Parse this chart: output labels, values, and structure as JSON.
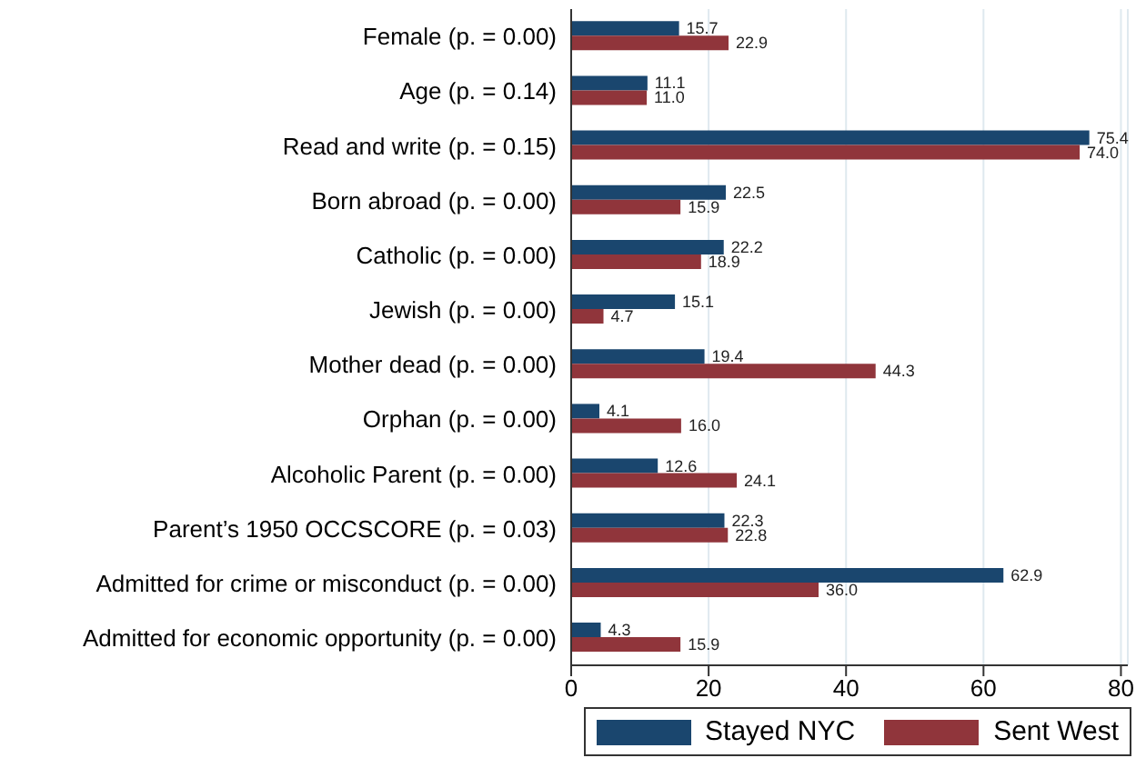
{
  "chart_data": {
    "type": "bar",
    "orientation": "horizontal",
    "categories": [
      "Female (p. = 0.00)",
      "Age (p. = 0.14)",
      "Read and write (p. = 0.15)",
      "Born abroad (p. = 0.00)",
      "Catholic (p. = 0.00)",
      "Jewish (p. = 0.00)",
      "Mother dead (p. = 0.00)",
      "Orphan (p. = 0.00)",
      "Alcoholic Parent (p. = 0.00)",
      "Parent’s 1950 OCCSCORE (p. = 0.03)",
      "Admitted for crime or misconduct (p. = 0.00)",
      "Admitted for economic opportunity (p. = 0.00)"
    ],
    "series": [
      {
        "name": "Stayed NYC",
        "color": "#1a466e",
        "values": [
          15.7,
          11.1,
          75.4,
          22.5,
          22.2,
          15.1,
          19.4,
          4.1,
          12.6,
          22.3,
          62.9,
          4.3
        ],
        "value_labels": [
          "15.7",
          "11.1",
          "75.4",
          "22.5",
          "22.2",
          "15.1",
          "19.4",
          "4.1",
          "12.6",
          "22.3",
          "62.9",
          "4.3"
        ]
      },
      {
        "name": "Sent West",
        "color": "#90353b",
        "values": [
          22.9,
          11.0,
          74.0,
          15.9,
          18.9,
          4.7,
          44.3,
          16.0,
          24.1,
          22.8,
          36.0,
          15.9
        ],
        "value_labels": [
          "22.9",
          "11.0",
          "74.0",
          "15.9",
          "18.9",
          "4.7",
          "44.3",
          "16.0",
          "24.1",
          "22.8",
          "36.0",
          "15.9"
        ]
      }
    ],
    "xlim": [
      0,
      81
    ],
    "xticks": [
      0,
      20,
      40,
      60,
      80
    ],
    "grid": "x",
    "legend": "bottom right"
  }
}
